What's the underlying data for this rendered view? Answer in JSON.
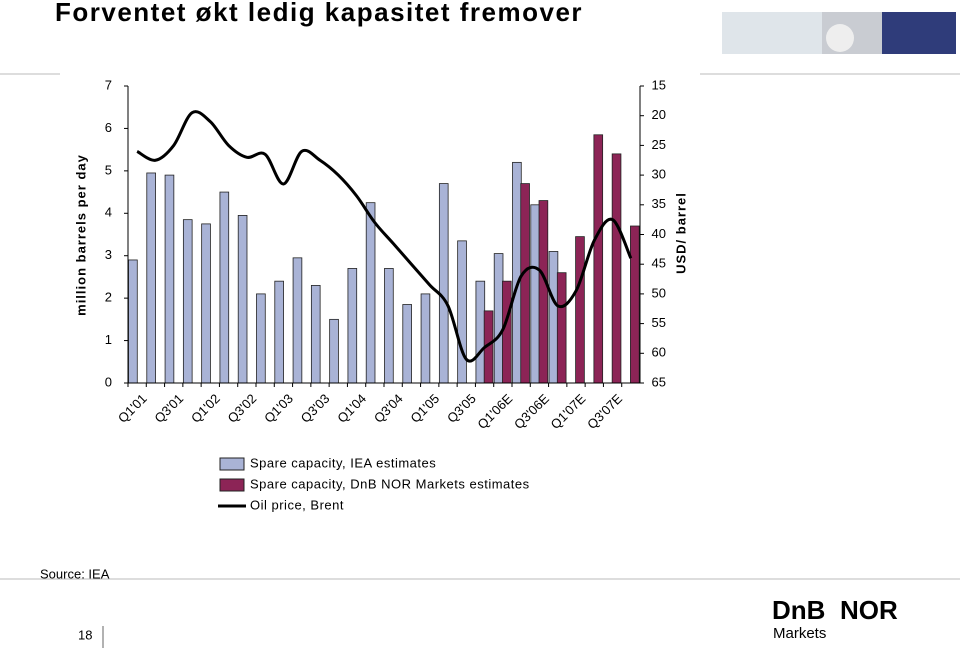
{
  "chart_data": {
    "type": "bar",
    "title": "Forventet økt ledig kapasitet fremover",
    "y_label": "million barrels per day",
    "y2_label": "USD/ barrel",
    "categories": [
      "Q1'01",
      null,
      "Q3'01",
      null,
      "Q1'02",
      null,
      "Q3'02",
      null,
      "Q1'03",
      null,
      "Q3'03",
      null,
      "Q1'04",
      null,
      "Q3'04",
      null,
      "Q1'05",
      null,
      "Q3'05",
      null,
      "Q1'06E",
      null,
      "Q3'06E",
      null,
      "Q1'07E",
      null,
      "Q3'07E",
      null
    ],
    "series": [
      {
        "name": "Spare capacity, IEA estimates",
        "type": "bar",
        "color": "#a9b3d6",
        "values": [
          2.9,
          4.95,
          4.9,
          3.85,
          3.75,
          4.5,
          3.95,
          2.1,
          2.4,
          2.95,
          2.3,
          1.5,
          2.7,
          4.25,
          2.7,
          1.85,
          2.1,
          4.7,
          3.35,
          2.4,
          3.05,
          5.2,
          4.2,
          3.1,
          null,
          null,
          null,
          null
        ]
      },
      {
        "name": "Spare capacity, DnB NOR Markets estimates",
        "type": "bar",
        "color": "#8c2456",
        "values": [
          null,
          null,
          null,
          null,
          null,
          null,
          null,
          null,
          null,
          null,
          null,
          null,
          null,
          null,
          null,
          null,
          null,
          null,
          null,
          1.7,
          2.4,
          4.7,
          4.3,
          2.6,
          3.45,
          5.85,
          5.4,
          3.7
        ]
      },
      {
        "name": "Oil price, Brent",
        "type": "line",
        "axis": "y2",
        "color": "#000000",
        "values": [
          26,
          27.5,
          25,
          19.5,
          21,
          25,
          27,
          26.5,
          31.5,
          26,
          27.5,
          30,
          33.5,
          38,
          41.5,
          45,
          48.5,
          52,
          61,
          59,
          56,
          47,
          46,
          52,
          49.5,
          41,
          37.5,
          44
        ]
      }
    ],
    "ylim": [
      0,
      7
    ],
    "yticks": [
      0,
      1,
      2,
      3,
      4,
      5,
      6,
      7
    ],
    "y2lim": [
      15,
      65
    ],
    "y2ticks": [
      15,
      20,
      25,
      30,
      35,
      40,
      45,
      50,
      55,
      60,
      65
    ],
    "y2_inverted": true,
    "source": "Source: IEA"
  },
  "page_number": "18",
  "logo": {
    "brand_left": "DnB",
    "brand_right": "NOR",
    "sub": "Markets"
  }
}
